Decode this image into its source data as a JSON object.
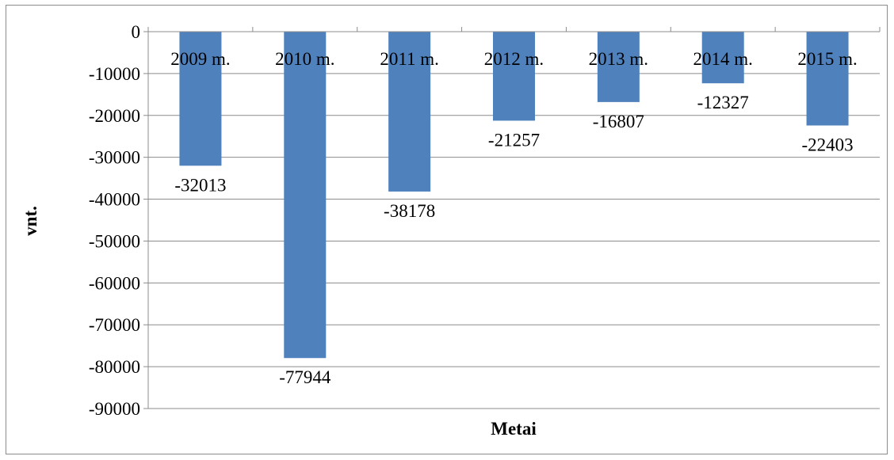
{
  "chart_data": {
    "type": "bar",
    "categories": [
      "2009 m.",
      "2010 m.",
      "2011 m.",
      "2012 m.",
      "2013 m.",
      "2014 m.",
      "2015 m."
    ],
    "values": [
      -32013,
      -77944,
      -38178,
      -21257,
      -16807,
      -12327,
      -22403
    ],
    "data_labels": [
      "-32013",
      "-77944",
      "-38178",
      "-21257",
      "-16807",
      "-12327",
      "-22403"
    ],
    "title": "",
    "xlabel": "Metai",
    "ylabel": "vnt.",
    "ylim": [
      -90000,
      0
    ],
    "yticks": [
      0,
      -10000,
      -20000,
      -30000,
      -40000,
      -50000,
      -60000,
      -70000,
      -80000,
      -90000
    ],
    "ytick_labels": [
      "0",
      "-10000",
      "-20000",
      "-30000",
      "-40000",
      "-50000",
      "-60000",
      "-70000",
      "-80000",
      "-90000"
    ],
    "grid": true,
    "legend": "none",
    "bar_color": "#4f81bd",
    "grid_color": "#8c8c8c"
  }
}
